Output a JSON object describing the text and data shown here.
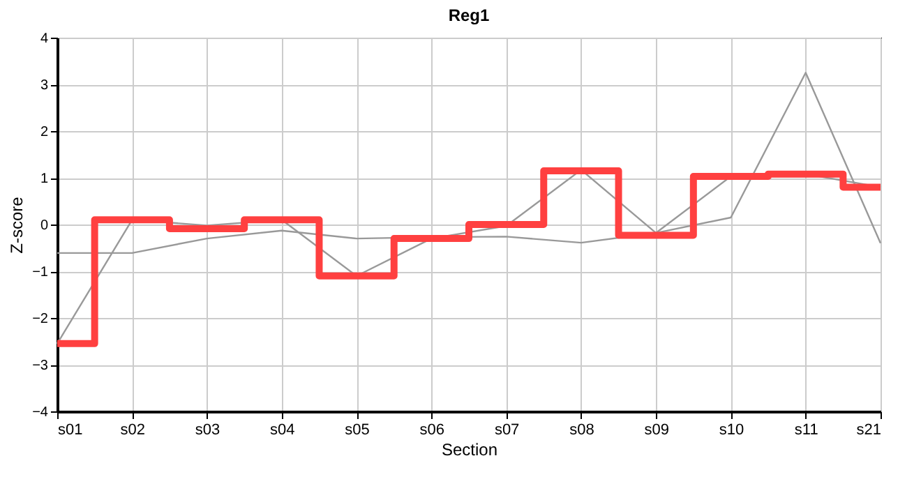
{
  "chart_data": {
    "type": "line",
    "title": "Reg1",
    "xlabel": "Section",
    "ylabel": "Z-score",
    "categories": [
      "s01",
      "s02",
      "s03",
      "s04",
      "s05",
      "s06",
      "s07",
      "s08",
      "s09",
      "s10",
      "s11",
      "s21"
    ],
    "ylim": [
      -4,
      4
    ],
    "yticks": [
      -4,
      -3,
      -2,
      -1,
      0,
      1,
      2,
      3,
      4
    ],
    "grid": true,
    "legend": false,
    "series": [
      {
        "type": "line",
        "color": "#999999",
        "values": [
          -0.61,
          -0.61,
          -0.3,
          -0.13,
          -0.3,
          -0.27,
          -0.26,
          -0.39,
          -0.18,
          0.15,
          3.25,
          -0.4
        ]
      },
      {
        "type": "line",
        "color": "#999999",
        "values": [
          -2.55,
          0.1,
          -0.02,
          0.1,
          -1.1,
          -0.3,
          -0.03,
          1.17,
          -0.18,
          1.03,
          1.08,
          0.8
        ]
      },
      {
        "type": "step",
        "color": "#ff4040",
        "values": [
          -2.55,
          0.1,
          -0.09,
          0.1,
          -1.1,
          -0.3,
          0.0,
          1.15,
          -0.23,
          1.03,
          1.08,
          0.8
        ]
      }
    ]
  }
}
